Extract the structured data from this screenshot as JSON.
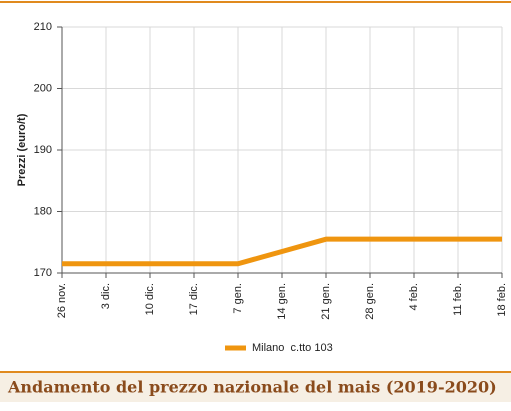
{
  "chart_data": {
    "type": "line",
    "title": "Andamento del prezzo nazionale del mais (2019-2020)",
    "y_label": "Prezzi (euro/t)",
    "categories": [
      "26 nov.",
      "3 dic.",
      "10 dic.",
      "17 dic.",
      "7 gen.",
      "14 gen.",
      "21 gen.",
      "28 gen.",
      "4 feb.",
      "11 feb.",
      "18 feb."
    ],
    "series": [
      {
        "name": "Milano  c.tto 103",
        "color": "#ef950f",
        "values": [
          171.5,
          171.5,
          171.5,
          171.5,
          171.5,
          173.5,
          175.5,
          175.5,
          175.5,
          175.5,
          175.5
        ]
      }
    ],
    "ylim": [
      170,
      210
    ],
    "yticks": [
      170,
      180,
      190,
      200,
      210
    ],
    "grid": true
  }
}
